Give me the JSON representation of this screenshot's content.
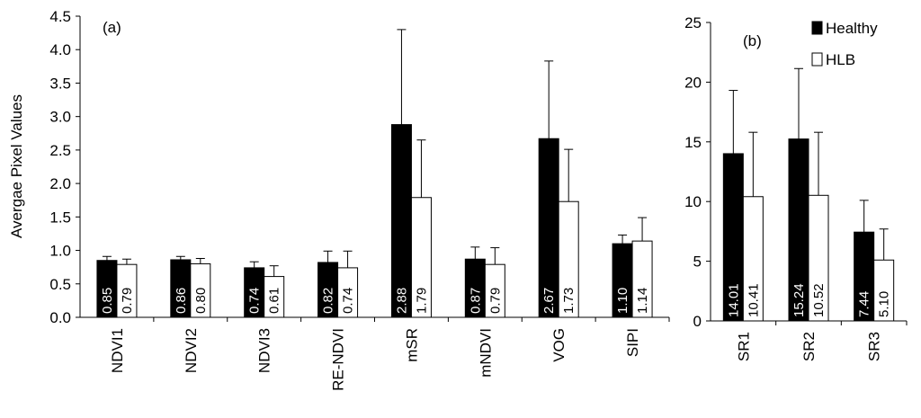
{
  "colors": {
    "healthy": "#000000",
    "hlb": "#ffffff",
    "axis": "#000000"
  },
  "legend": [
    {
      "name": "Healthy",
      "color": "#000000"
    },
    {
      "name": "HLB",
      "color": "#ffffff"
    }
  ],
  "chart_data": [
    {
      "type": "bar",
      "panel_label": "(a)",
      "ylabel": "Avergae Pixel Values",
      "xlabel": "",
      "ylim": [
        0,
        4.5
      ],
      "yticks": [
        "0.0",
        "0.5",
        "1.0",
        "1.5",
        "2.0",
        "2.5",
        "3.0",
        "3.5",
        "4.0",
        "4.5"
      ],
      "categories": [
        "NDVI1",
        "NDVI2",
        "NDVI3",
        "RE-NDVI",
        "mSR",
        "mNDVI",
        "VOG",
        "SIPI"
      ],
      "series": [
        {
          "name": "Healthy",
          "values": [
            0.85,
            0.86,
            0.74,
            0.82,
            2.88,
            0.87,
            2.67,
            1.1
          ],
          "labels": [
            "0.85",
            "0.86",
            "0.74",
            "0.82",
            "2.88",
            "0.87",
            "2.67",
            "1.10"
          ],
          "error": [
            0.06,
            0.05,
            0.09,
            0.17,
            1.42,
            0.18,
            1.16,
            0.13
          ]
        },
        {
          "name": "HLB",
          "values": [
            0.79,
            0.8,
            0.61,
            0.74,
            1.79,
            0.79,
            1.73,
            1.14
          ],
          "labels": [
            "0.79",
            "0.80",
            "0.61",
            "0.74",
            "1.79",
            "0.79",
            "1.73",
            "1.14"
          ],
          "error": [
            0.08,
            0.08,
            0.16,
            0.25,
            0.86,
            0.25,
            0.78,
            0.35
          ]
        }
      ],
      "legend_position": "none",
      "grid": false
    },
    {
      "type": "bar",
      "panel_label": "(b)",
      "ylabel": "",
      "xlabel": "",
      "ylim": [
        0,
        25
      ],
      "yticks": [
        "0",
        "5",
        "10",
        "15",
        "20",
        "25"
      ],
      "categories": [
        "SR1",
        "SR2",
        "SR3"
      ],
      "series": [
        {
          "name": "Healthy",
          "values": [
            14.01,
            15.24,
            7.44
          ],
          "labels": [
            "14.01",
            "15.24",
            "7.44"
          ],
          "error": [
            5.3,
            5.9,
            2.66
          ]
        },
        {
          "name": "HLB",
          "values": [
            10.41,
            10.52,
            5.1
          ],
          "labels": [
            "10.41",
            "10.52",
            "5.10"
          ],
          "error": [
            5.39,
            5.28,
            2.6
          ]
        }
      ],
      "legend_position": "top-right",
      "grid": false
    }
  ]
}
